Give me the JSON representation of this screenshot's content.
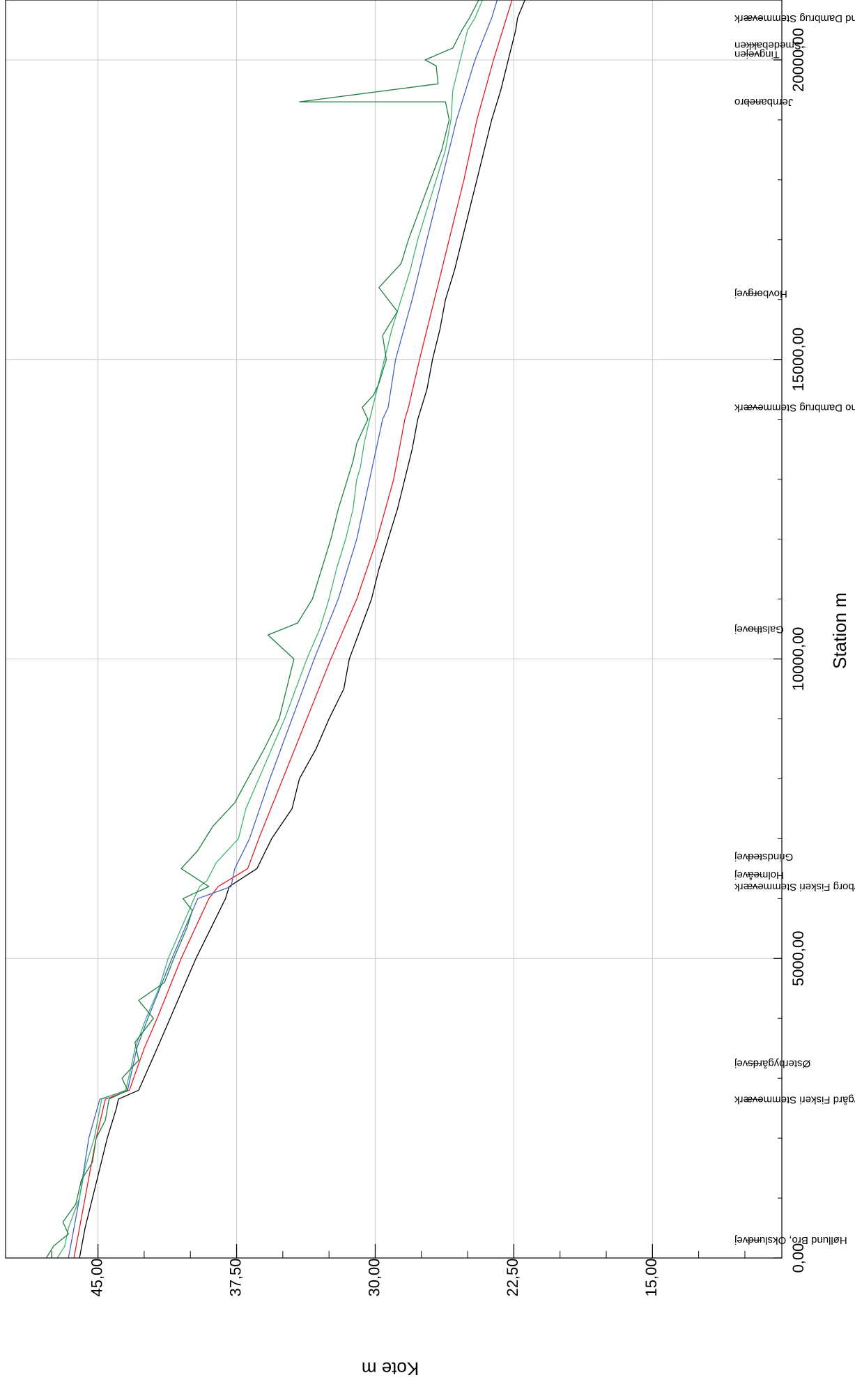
{
  "chart_data": {
    "type": "line",
    "xlabel": "Station m",
    "ylabel": "Kote m",
    "xlim": [
      0,
      21000
    ],
    "ylim": [
      8,
      50
    ],
    "grid": true,
    "x_ticks": [
      {
        "value": 0,
        "label": "0,00"
      },
      {
        "value": 5000,
        "label": "5000,00"
      },
      {
        "value": 10000,
        "label": "10000,00"
      },
      {
        "value": 15000,
        "label": "15000,00"
      },
      {
        "value": 20000,
        "label": "20000,00"
      }
    ],
    "y_ticks": [
      {
        "value": 15,
        "label": "15,00"
      },
      {
        "value": 22.5,
        "label": "22,50"
      },
      {
        "value": 30,
        "label": "30,00"
      },
      {
        "value": 37.5,
        "label": "37,50"
      },
      {
        "value": 45,
        "label": "45,00"
      }
    ],
    "structures": [
      {
        "station": 300,
        "label": "Høllund Bro, Okslundvej"
      },
      {
        "station": 2650,
        "label": "Østerbygård Fiskeri Stemmeværk"
      },
      {
        "station": 3250,
        "label": "Østerbygårdsvej"
      },
      {
        "station": 6200,
        "label": "Hovborg Fiskeri Stemmeværk"
      },
      {
        "station": 6400,
        "label": "Holmeåvej"
      },
      {
        "station": 6700,
        "label": "Grindstedvej"
      },
      {
        "station": 10500,
        "label": "Galsthovej"
      },
      {
        "station": 16100,
        "label": "Hovborgvej"
      },
      {
        "station": 14200,
        "label": "Hesselho Dambrug Stemmeværk"
      },
      {
        "station": 19300,
        "label": "Jernbanebro"
      },
      {
        "station": 20100,
        "label": "Tingvejen"
      },
      {
        "station": 20250,
        "label": "Smedebakken"
      },
      {
        "station": 20700,
        "label": "Puglund Dambrug Stemmeværk"
      }
    ],
    "series": [
      {
        "color": "#000000",
        "values": [
          [
            0,
            46.0
          ],
          [
            500,
            45.7
          ],
          [
            1000,
            45.3
          ],
          [
            1500,
            44.9
          ],
          [
            2000,
            44.5
          ],
          [
            2500,
            44.0
          ],
          [
            2650,
            43.9
          ],
          [
            2800,
            42.8
          ],
          [
            3500,
            41.8
          ],
          [
            4000,
            41.1
          ],
          [
            4500,
            40.4
          ],
          [
            5000,
            39.7
          ],
          [
            5500,
            38.9
          ],
          [
            6000,
            38.1
          ],
          [
            6200,
            37.9
          ],
          [
            6500,
            36.4
          ],
          [
            7000,
            35.6
          ],
          [
            7500,
            34.5
          ],
          [
            8000,
            34.1
          ],
          [
            8500,
            33.2
          ],
          [
            9000,
            32.5
          ],
          [
            9500,
            31.7
          ],
          [
            10000,
            31.4
          ],
          [
            10500,
            30.8
          ],
          [
            11000,
            30.2
          ],
          [
            11500,
            29.8
          ],
          [
            12000,
            29.3
          ],
          [
            12500,
            28.8
          ],
          [
            13000,
            28.4
          ],
          [
            13500,
            28.0
          ],
          [
            14000,
            27.7
          ],
          [
            14500,
            27.2
          ],
          [
            15000,
            26.9
          ],
          [
            15500,
            26.5
          ],
          [
            16000,
            26.2
          ],
          [
            16500,
            25.7
          ],
          [
            17000,
            25.3
          ],
          [
            17500,
            24.9
          ],
          [
            18000,
            24.5
          ],
          [
            18500,
            24.1
          ],
          [
            19000,
            23.7
          ],
          [
            19500,
            23.2
          ],
          [
            20000,
            22.8
          ],
          [
            20500,
            22.4
          ],
          [
            20700,
            22.3
          ],
          [
            21000,
            21.9
          ]
        ]
      },
      {
        "color": "#e41a1c",
        "values": [
          [
            0,
            46.3
          ],
          [
            1000,
            45.7
          ],
          [
            2000,
            45.1
          ],
          [
            2650,
            44.6
          ],
          [
            2800,
            43.3
          ],
          [
            3500,
            42.5
          ],
          [
            4000,
            41.8
          ],
          [
            5000,
            40.5
          ],
          [
            6000,
            39.0
          ],
          [
            6200,
            38.5
          ],
          [
            6500,
            36.9
          ],
          [
            7000,
            36.3
          ],
          [
            8000,
            35.0
          ],
          [
            9000,
            33.7
          ],
          [
            10000,
            32.4
          ],
          [
            11000,
            31.0
          ],
          [
            12000,
            29.9
          ],
          [
            13000,
            29.0
          ],
          [
            14000,
            28.4
          ],
          [
            14200,
            28.2
          ],
          [
            15000,
            27.6
          ],
          [
            16000,
            26.8
          ],
          [
            17000,
            26.0
          ],
          [
            18000,
            25.2
          ],
          [
            19000,
            24.5
          ],
          [
            20000,
            23.6
          ],
          [
            20700,
            22.9
          ],
          [
            21000,
            22.6
          ]
        ]
      },
      {
        "color": "#4a5fc1",
        "values": [
          [
            0,
            46.6
          ],
          [
            1000,
            46.0
          ],
          [
            2000,
            45.5
          ],
          [
            2650,
            44.9
          ],
          [
            2800,
            43.4
          ],
          [
            3500,
            42.9
          ],
          [
            4000,
            42.3
          ],
          [
            5000,
            41.0
          ],
          [
            6000,
            39.6
          ],
          [
            6200,
            37.8
          ],
          [
            6500,
            37.6
          ],
          [
            7000,
            36.8
          ],
          [
            8000,
            35.7
          ],
          [
            9000,
            34.5
          ],
          [
            10000,
            33.3
          ],
          [
            11000,
            32.0
          ],
          [
            12000,
            31.0
          ],
          [
            13000,
            30.3
          ],
          [
            14000,
            29.6
          ],
          [
            14200,
            29.3
          ],
          [
            15000,
            28.9
          ],
          [
            16000,
            28.0
          ],
          [
            17000,
            27.2
          ],
          [
            18000,
            26.4
          ],
          [
            19000,
            25.6
          ],
          [
            20000,
            24.6
          ],
          [
            20700,
            23.7
          ],
          [
            21000,
            23.4
          ]
        ]
      },
      {
        "color": "#3cb371",
        "values": [
          [
            0,
            47.2
          ],
          [
            200,
            46.8
          ],
          [
            500,
            46.6
          ],
          [
            1000,
            46.0
          ],
          [
            1500,
            45.7
          ],
          [
            2000,
            45.2
          ],
          [
            2650,
            44.8
          ],
          [
            2800,
            43.5
          ],
          [
            3200,
            43.2
          ],
          [
            3500,
            43.0
          ],
          [
            4000,
            42.4
          ],
          [
            4500,
            41.7
          ],
          [
            5000,
            41.2
          ],
          [
            5500,
            40.5
          ],
          [
            6000,
            39.8
          ],
          [
            6200,
            39.5
          ],
          [
            6300,
            39.1
          ],
          [
            6600,
            38.6
          ],
          [
            7000,
            37.4
          ],
          [
            7500,
            37.0
          ],
          [
            8000,
            36.3
          ],
          [
            8500,
            35.6
          ],
          [
            9000,
            34.9
          ],
          [
            9500,
            34.3
          ],
          [
            10000,
            33.7
          ],
          [
            10500,
            33.0
          ],
          [
            11000,
            32.5
          ],
          [
            11500,
            32.1
          ],
          [
            12000,
            31.6
          ],
          [
            12500,
            31.2
          ],
          [
            13000,
            31.0
          ],
          [
            13200,
            30.8
          ],
          [
            13600,
            30.6
          ],
          [
            14000,
            30.3
          ],
          [
            14500,
            29.9
          ],
          [
            15000,
            29.5
          ],
          [
            15500,
            29.1
          ],
          [
            16000,
            28.6
          ],
          [
            16500,
            28.1
          ],
          [
            17000,
            27.7
          ],
          [
            17500,
            27.2
          ],
          [
            18000,
            26.7
          ],
          [
            18500,
            26.2
          ],
          [
            19000,
            25.9
          ],
          [
            19500,
            25.8
          ],
          [
            20000,
            25.4
          ],
          [
            20500,
            25.0
          ],
          [
            20700,
            24.6
          ],
          [
            21000,
            24.2
          ]
        ]
      },
      {
        "color": "#1e7f3f",
        "values": [
          [
            0,
            47.8
          ],
          [
            200,
            47.4
          ],
          [
            400,
            46.6
          ],
          [
            600,
            46.9
          ],
          [
            900,
            46.2
          ],
          [
            1300,
            45.9
          ],
          [
            1600,
            45.3
          ],
          [
            2000,
            45.1
          ],
          [
            2300,
            44.6
          ],
          [
            2650,
            44.4
          ],
          [
            2800,
            43.4
          ],
          [
            3000,
            43.7
          ],
          [
            3300,
            42.8
          ],
          [
            3600,
            43.0
          ],
          [
            4000,
            42.0
          ],
          [
            4300,
            42.8
          ],
          [
            4600,
            41.4
          ],
          [
            5000,
            40.9
          ],
          [
            5500,
            40.2
          ],
          [
            5800,
            39.9
          ],
          [
            6000,
            40.4
          ],
          [
            6200,
            39.0
          ],
          [
            6500,
            40.5
          ],
          [
            6800,
            39.6
          ],
          [
            7200,
            38.8
          ],
          [
            7600,
            37.6
          ],
          [
            8000,
            36.9
          ],
          [
            8500,
            36.0
          ],
          [
            9000,
            35.2
          ],
          [
            9500,
            34.8
          ],
          [
            10000,
            34.4
          ],
          [
            10400,
            35.8
          ],
          [
            10600,
            34.2
          ],
          [
            11000,
            33.4
          ],
          [
            11500,
            32.9
          ],
          [
            12000,
            32.4
          ],
          [
            12500,
            32.0
          ],
          [
            13000,
            31.5
          ],
          [
            13300,
            31.2
          ],
          [
            13600,
            31.0
          ],
          [
            14000,
            30.4
          ],
          [
            14200,
            30.7
          ],
          [
            14400,
            30.1
          ],
          [
            14600,
            29.8
          ],
          [
            15000,
            29.4
          ],
          [
            15400,
            29.6
          ],
          [
            15800,
            28.8
          ],
          [
            16200,
            29.8
          ],
          [
            16600,
            28.6
          ],
          [
            17000,
            28.2
          ],
          [
            17500,
            27.6
          ],
          [
            18000,
            27.0
          ],
          [
            18500,
            26.4
          ],
          [
            19000,
            26.0
          ],
          [
            19300,
            26.2
          ],
          [
            19300,
            34.1
          ],
          [
            19600,
            26.6
          ],
          [
            19900,
            26.7
          ],
          [
            20000,
            27.3
          ],
          [
            20200,
            25.8
          ],
          [
            20500,
            25.3
          ],
          [
            20700,
            24.9
          ],
          [
            21000,
            24.4
          ]
        ]
      }
    ]
  }
}
